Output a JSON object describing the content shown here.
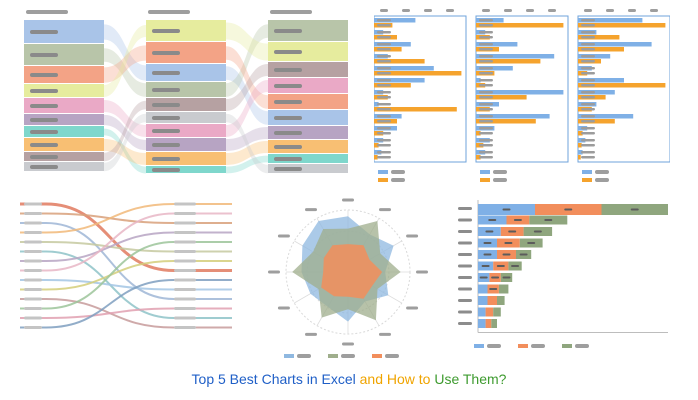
{
  "caption": {
    "part1": "Top 5 Best Charts in Excel ",
    "part2": "and How to ",
    "part3": "Use Them?",
    "colors": [
      "#1f5fc7",
      "#f0a400",
      "#3e9b2f"
    ]
  },
  "sankey_panel": {
    "palette": [
      "#a9c4e8",
      "#b8c5a9",
      "#f3a386",
      "#e6ec9e",
      "#eaa9c6",
      "#b7a4c3",
      "#7fd7cc",
      "#f8bf73",
      "#b6a1a2",
      "#c9cbcf"
    ],
    "columns": [
      {
        "bands": [
          0,
          1,
          2,
          3,
          4,
          5,
          6,
          7,
          8,
          9
        ],
        "heights": [
          24,
          22,
          18,
          14,
          16,
          12,
          12,
          14,
          10,
          10
        ]
      },
      {
        "bands": [
          3,
          2,
          0,
          1,
          8,
          9,
          4,
          5,
          7,
          6
        ],
        "heights": [
          22,
          22,
          18,
          16,
          14,
          12,
          14,
          14,
          14,
          8
        ]
      },
      {
        "bands": [
          1,
          3,
          8,
          4,
          2,
          0,
          5,
          7,
          6,
          9
        ],
        "heights": [
          22,
          20,
          16,
          16,
          16,
          16,
          14,
          14,
          10,
          10
        ]
      }
    ]
  },
  "bar_panel": {
    "series_colors": [
      "#7fb0e6",
      "#f5a32d"
    ],
    "panels": [
      {
        "rows": [
          [
            0.45,
            0.2
          ],
          [
            0.1,
            0.25
          ],
          [
            0.4,
            0.3
          ],
          [
            0.15,
            0.55
          ],
          [
            0.65,
            0.95
          ],
          [
            0.55,
            0.4
          ],
          [
            0.1,
            0.15
          ],
          [
            0.05,
            0.9
          ],
          [
            0.3,
            0.25
          ],
          [
            0.25,
            0.1
          ],
          [
            0.1,
            0.05
          ],
          [
            0.08,
            0.04
          ]
        ]
      },
      {
        "rows": [
          [
            0.3,
            0.95
          ],
          [
            0.1,
            0.15
          ],
          [
            0.45,
            0.25
          ],
          [
            0.85,
            0.7
          ],
          [
            0.4,
            0.2
          ],
          [
            0.05,
            0.1
          ],
          [
            0.95,
            0.55
          ],
          [
            0.25,
            0.15
          ],
          [
            0.8,
            0.65
          ],
          [
            0.2,
            0.05
          ],
          [
            0.15,
            0.08
          ],
          [
            0.1,
            0.05
          ]
        ]
      },
      {
        "rows": [
          [
            0.7,
            0.95
          ],
          [
            0.2,
            0.45
          ],
          [
            0.8,
            0.5
          ],
          [
            0.35,
            0.25
          ],
          [
            0.15,
            0.1
          ],
          [
            0.5,
            0.95
          ],
          [
            0.4,
            0.3
          ],
          [
            0.2,
            0.15
          ],
          [
            0.6,
            0.4
          ],
          [
            0.1,
            0.05
          ],
          [
            0.08,
            0.04
          ],
          [
            0.05,
            0.03
          ]
        ]
      }
    ]
  },
  "slope_panel": {
    "palette": [
      "#e07a5f",
      "#d8a07a",
      "#9fb6d6",
      "#f1b879",
      "#c5c9a0",
      "#8ec3c8",
      "#b7a4c3",
      "#e7b6c6",
      "#a3c6e4",
      "#d4ce7a",
      "#c79b9b",
      "#9cc49a",
      "#e0a0b0",
      "#7f9fbf"
    ],
    "pairs": [
      [
        0,
        7
      ],
      [
        1,
        2
      ],
      [
        2,
        10
      ],
      [
        3,
        0
      ],
      [
        4,
        5
      ],
      [
        5,
        12
      ],
      [
        6,
        3
      ],
      [
        7,
        1
      ],
      [
        8,
        9
      ],
      [
        9,
        6
      ],
      [
        10,
        13
      ],
      [
        11,
        4
      ],
      [
        12,
        11
      ],
      [
        13,
        8
      ]
    ]
  },
  "radar_panel": {
    "spokes": 12,
    "series_colors": [
      "#8fb8e0",
      "#9fae8c",
      "#f28e5c"
    ],
    "series": [
      {
        "values": [
          0.9,
          0.7,
          0.85,
          0.6,
          0.75,
          0.55,
          0.8,
          0.65,
          0.7,
          0.75,
          0.85,
          0.95
        ]
      },
      {
        "values": [
          0.7,
          0.95,
          0.6,
          0.85,
          0.55,
          0.9,
          0.6,
          0.85,
          0.55,
          0.9,
          0.65,
          0.8
        ]
      },
      {
        "values": [
          0.45,
          0.5,
          0.4,
          0.55,
          0.45,
          0.5,
          0.4,
          0.45,
          0.5,
          0.4,
          0.45,
          0.5
        ]
      }
    ]
  },
  "stacked_panel": {
    "series_colors": [
      "#7fb0e6",
      "#f28e5c",
      "#8fa67e"
    ],
    "rows": [
      [
        0.3,
        0.35,
        0.35
      ],
      [
        0.15,
        0.12,
        0.2
      ],
      [
        0.12,
        0.12,
        0.15
      ],
      [
        0.1,
        0.12,
        0.12
      ],
      [
        0.1,
        0.1,
        0.08
      ],
      [
        0.08,
        0.08,
        0.07
      ],
      [
        0.06,
        0.06,
        0.06
      ],
      [
        0.05,
        0.06,
        0.05
      ],
      [
        0.05,
        0.05,
        0.04
      ],
      [
        0.04,
        0.04,
        0.04
      ],
      [
        0.04,
        0.03,
        0.03
      ]
    ]
  }
}
